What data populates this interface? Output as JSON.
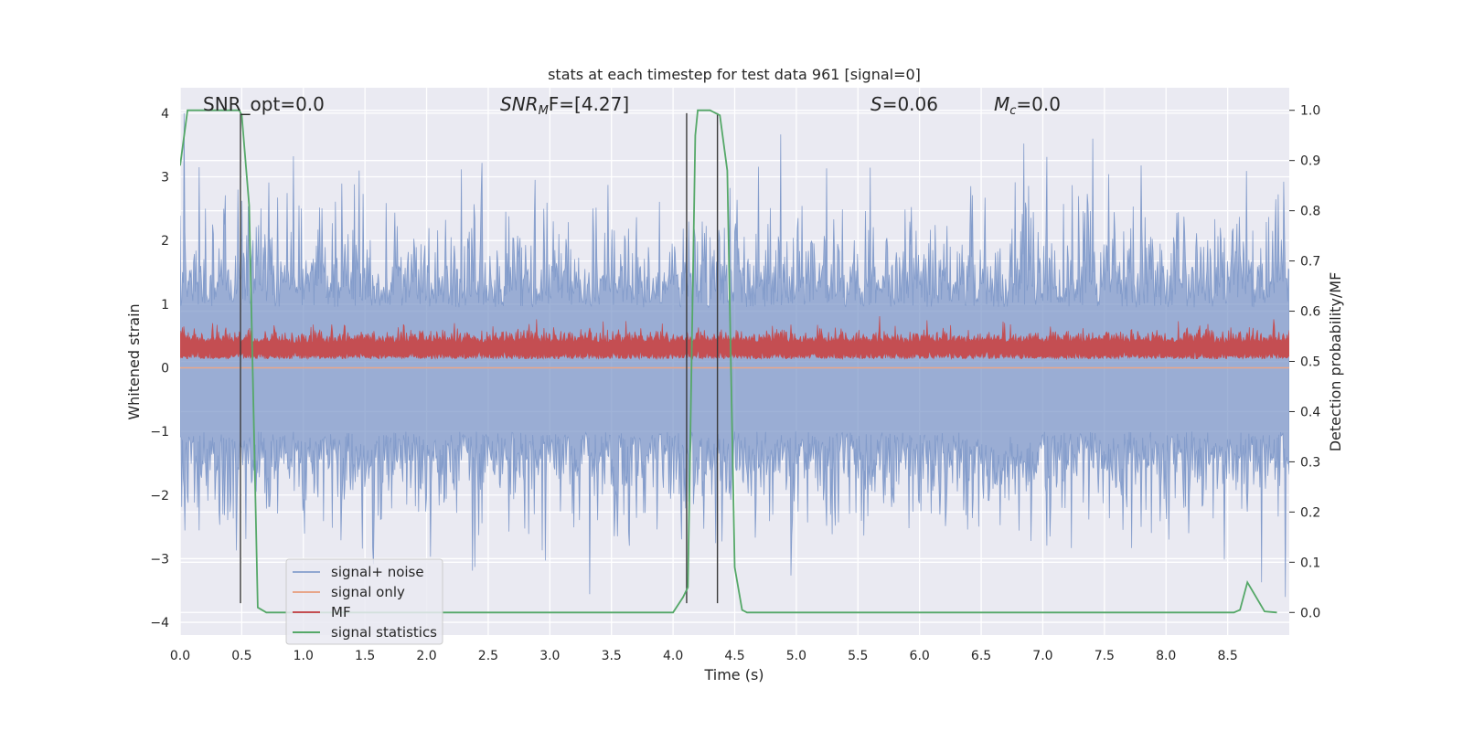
{
  "chart_data": {
    "type": "line",
    "title": "stats at each timestep for test data 961 [signal=0]",
    "xlabel": "Time (s)",
    "ylabel": "Whitened strain",
    "y2label": "Detection probability/MF",
    "xlim": [
      0,
      9.0
    ],
    "ylim": [
      -4.2,
      4.4
    ],
    "y2lim": [
      -0.045,
      1.045
    ],
    "xticks": [
      "0.0",
      "0.5",
      "1.0",
      "1.5",
      "2.0",
      "2.5",
      "3.0",
      "3.5",
      "4.0",
      "4.5",
      "5.0",
      "5.5",
      "6.0",
      "6.5",
      "7.0",
      "7.5",
      "8.0",
      "8.5"
    ],
    "yticks": [
      "4",
      "3",
      "2",
      "1",
      "0",
      "−1",
      "−2",
      "−3",
      "−4"
    ],
    "y2ticks": [
      "1.0",
      "0.9",
      "0.8",
      "0.7",
      "0.6",
      "0.5",
      "0.4",
      "0.3",
      "0.2",
      "0.1",
      "0.0"
    ],
    "grid": true,
    "legend_position": "lower-left",
    "annotations": {
      "snr_opt": "SNR_opt=0.0",
      "snr_mf_sym": "SNR",
      "snr_mf_sub": "M",
      "snr_mf_tail": "F=[4.27]",
      "s_sym": "S",
      "s_tail": "=0.06",
      "mc_sym": "M",
      "mc_sub": "c",
      "mc_tail": "=0.0"
    },
    "series": [
      {
        "name": "signal+ noise",
        "color": "#7b96c8",
        "axis": "left",
        "style": "dense noise",
        "approx_range": [
          -3.6,
          4.0
        ]
      },
      {
        "name": "signal only",
        "color": "#e8a68a",
        "axis": "left",
        "style": "flat at 0",
        "values": [
          0.0
        ]
      },
      {
        "name": "MF",
        "color": "#c44e52",
        "axis": "right",
        "style": "dense noise",
        "approx_range": [
          0.5,
          0.59
        ]
      },
      {
        "name": "signal statistics",
        "color": "#55a868",
        "axis": "right",
        "x": [
          0.0,
          0.06,
          0.1,
          0.2,
          0.3,
          0.4,
          0.48,
          0.5,
          0.56,
          0.63,
          0.7,
          0.8,
          1.0,
          2.0,
          3.0,
          4.0,
          4.08,
          4.12,
          4.18,
          4.2,
          4.3,
          4.38,
          4.44,
          4.5,
          4.56,
          4.6,
          4.7,
          5.0,
          6.0,
          7.0,
          8.0,
          8.55,
          8.6,
          8.66,
          8.72,
          8.8,
          8.9
        ],
        "y": [
          0.89,
          1.0,
          1.0,
          1.0,
          1.0,
          1.0,
          1.0,
          0.99,
          0.81,
          0.01,
          0.0,
          0.0,
          0.0,
          0.0,
          0.0,
          0.0,
          0.03,
          0.05,
          0.95,
          1.0,
          1.0,
          0.99,
          0.88,
          0.09,
          0.005,
          0.0,
          0.0,
          0.0,
          0.0,
          0.0,
          0.0,
          0.0,
          0.005,
          0.06,
          0.035,
          0.002,
          0.0
        ]
      }
    ],
    "vertical_lines": [
      {
        "x": 0.49,
        "y_range": [
          -3.7,
          4.0
        ]
      },
      {
        "x": 4.11,
        "y_range": [
          -3.7,
          4.0
        ]
      },
      {
        "x": 4.36,
        "y_range": [
          -3.7,
          4.0
        ]
      }
    ]
  }
}
